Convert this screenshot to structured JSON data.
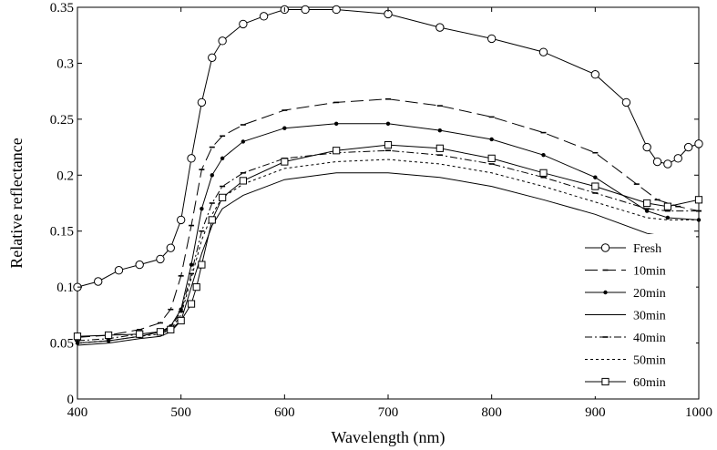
{
  "chart_data": {
    "type": "line",
    "title": "",
    "xlabel": "Wavelength (nm)",
    "ylabel": "Relative reflectance",
    "xlim": [
      400,
      1000
    ],
    "ylim": [
      0,
      0.35
    ],
    "x_ticks": [
      "400",
      "500",
      "600",
      "700",
      "800",
      "900",
      "1000"
    ],
    "y_ticks": [
      "0",
      "0.05",
      "0.1",
      "0.15",
      "0.2",
      "0.25",
      "0.3",
      "0.35"
    ],
    "grid": false,
    "legend_position": "bottom-right",
    "series": [
      {
        "name": "Fresh",
        "marker": "circle",
        "line": "solid",
        "x": [
          400,
          420,
          440,
          460,
          480,
          490,
          500,
          510,
          520,
          530,
          540,
          560,
          580,
          600,
          620,
          650,
          700,
          750,
          800,
          850,
          900,
          930,
          950,
          960,
          970,
          980,
          990,
          1000
        ],
        "y": [
          0.1,
          0.105,
          0.115,
          0.12,
          0.125,
          0.135,
          0.16,
          0.215,
          0.265,
          0.305,
          0.32,
          0.335,
          0.342,
          0.348,
          0.348,
          0.348,
          0.344,
          0.332,
          0.322,
          0.31,
          0.29,
          0.265,
          0.225,
          0.212,
          0.21,
          0.215,
          0.225,
          0.228
        ]
      },
      {
        "name": "10min",
        "marker": "dash",
        "line": "longdash",
        "x": [
          400,
          430,
          460,
          480,
          490,
          500,
          510,
          520,
          530,
          540,
          560,
          600,
          650,
          700,
          750,
          800,
          850,
          900,
          940,
          960,
          980,
          1000
        ],
        "y": [
          0.055,
          0.057,
          0.062,
          0.068,
          0.08,
          0.11,
          0.155,
          0.205,
          0.225,
          0.235,
          0.245,
          0.258,
          0.265,
          0.268,
          0.262,
          0.252,
          0.238,
          0.22,
          0.192,
          0.178,
          0.172,
          0.168
        ]
      },
      {
        "name": "20min",
        "marker": "dot",
        "line": "solid",
        "x": [
          400,
          430,
          460,
          480,
          490,
          500,
          510,
          520,
          530,
          540,
          560,
          600,
          650,
          700,
          750,
          800,
          850,
          900,
          950,
          970,
          1000
        ],
        "y": [
          0.05,
          0.052,
          0.056,
          0.06,
          0.065,
          0.08,
          0.12,
          0.17,
          0.2,
          0.215,
          0.23,
          0.242,
          0.246,
          0.246,
          0.24,
          0.232,
          0.218,
          0.198,
          0.168,
          0.162,
          0.16
        ]
      },
      {
        "name": "30min",
        "marker": "none",
        "line": "solid",
        "x": [
          400,
          430,
          460,
          480,
          490,
          500,
          510,
          520,
          530,
          540,
          560,
          600,
          650,
          700,
          750,
          800,
          850,
          900,
          950,
          970,
          1000
        ],
        "y": [
          0.048,
          0.05,
          0.054,
          0.056,
          0.06,
          0.07,
          0.1,
          0.13,
          0.155,
          0.17,
          0.182,
          0.196,
          0.202,
          0.202,
          0.198,
          0.19,
          0.178,
          0.165,
          0.148,
          0.145,
          0.145
        ]
      },
      {
        "name": "40min",
        "marker": "dash",
        "line": "dashdot",
        "x": [
          400,
          430,
          460,
          480,
          490,
          500,
          510,
          520,
          530,
          540,
          560,
          600,
          650,
          700,
          750,
          800,
          850,
          900,
          950,
          970,
          1000
        ],
        "y": [
          0.052,
          0.054,
          0.058,
          0.06,
          0.064,
          0.078,
          0.112,
          0.15,
          0.175,
          0.19,
          0.202,
          0.215,
          0.22,
          0.222,
          0.218,
          0.21,
          0.198,
          0.184,
          0.17,
          0.168,
          0.168
        ]
      },
      {
        "name": "50min",
        "marker": "none",
        "line": "dotted",
        "x": [
          400,
          430,
          460,
          480,
          490,
          500,
          510,
          520,
          530,
          540,
          560,
          600,
          650,
          700,
          750,
          800,
          850,
          900,
          950,
          970,
          1000
        ],
        "y": [
          0.05,
          0.052,
          0.056,
          0.058,
          0.062,
          0.075,
          0.108,
          0.142,
          0.165,
          0.18,
          0.192,
          0.206,
          0.212,
          0.214,
          0.21,
          0.202,
          0.19,
          0.176,
          0.162,
          0.16,
          0.16
        ]
      },
      {
        "name": "60min",
        "marker": "square",
        "line": "solid",
        "x": [
          400,
          430,
          460,
          480,
          490,
          500,
          510,
          515,
          520,
          530,
          540,
          560,
          600,
          650,
          700,
          750,
          800,
          850,
          900,
          950,
          970,
          1000
        ],
        "y": [
          0.056,
          0.057,
          0.058,
          0.06,
          0.062,
          0.07,
          0.085,
          0.1,
          0.12,
          0.16,
          0.18,
          0.195,
          0.212,
          0.222,
          0.227,
          0.224,
          0.215,
          0.202,
          0.19,
          0.175,
          0.172,
          0.178
        ]
      }
    ]
  }
}
